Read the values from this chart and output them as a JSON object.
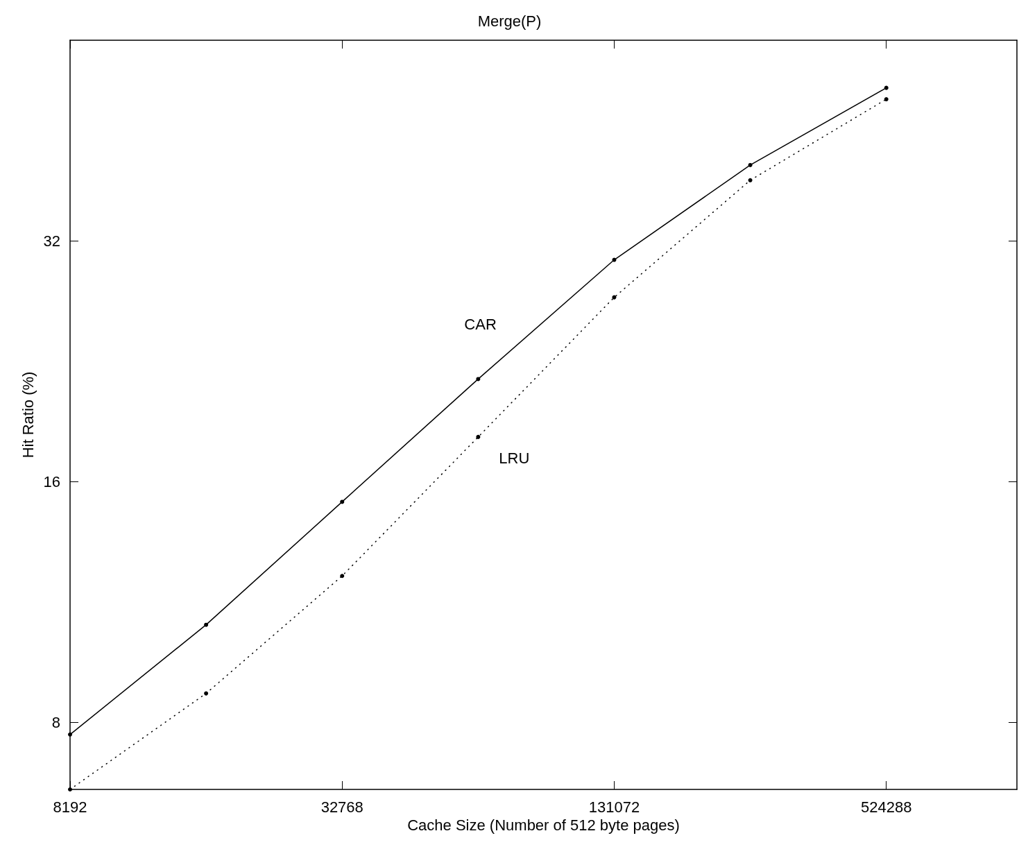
{
  "chart_data": {
    "type": "line",
    "title": "Merge(P)",
    "xlabel": "Cache Size (Number of 512 byte pages)",
    "ylabel": "Hit Ratio (%)",
    "x": [
      8192,
      16384,
      32768,
      65536,
      131072,
      262144,
      524288
    ],
    "series": [
      {
        "name": "CAR",
        "color": "#000000",
        "line_style": "solid",
        "values": [
          7.73,
          10.6,
          15.1,
          21.5,
          30.3,
          39.8,
          49.7
        ]
      },
      {
        "name": "LRU",
        "color": "#000000",
        "line_style": "dotted",
        "values": [
          6.6,
          8.7,
          12.2,
          18.2,
          27.2,
          38.1,
          48.1
        ]
      }
    ],
    "log": "xy",
    "xlim": [
      8192,
      1020000
    ],
    "ylim": [
      6.6,
      57
    ],
    "xticks": [
      8192,
      32768,
      131072,
      524288
    ],
    "yticks": [
      8,
      16,
      32
    ],
    "marker": "circle",
    "grid": false,
    "legend": false
  }
}
